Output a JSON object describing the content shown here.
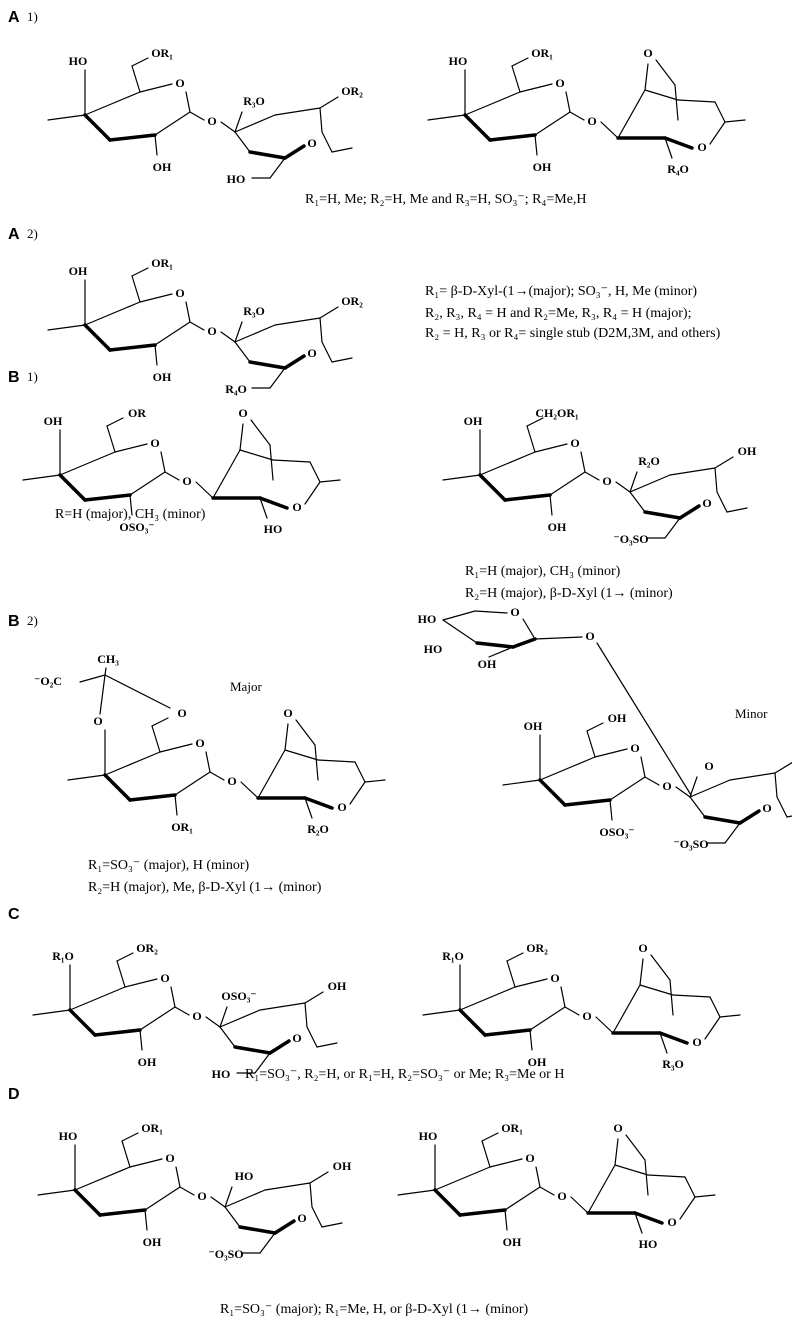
{
  "sections": [
    {
      "label": "A",
      "number": "1)",
      "structures": [
        {
          "template": "GG",
          "atoms": [
            "HO",
            "OR₁",
            "O",
            "OH",
            "O",
            "R₃O",
            "O",
            "OR₂",
            "HO"
          ]
        },
        {
          "template": "GDA",
          "atoms": [
            "HO",
            "OR₁",
            "O",
            "OH",
            "O",
            "O",
            "O",
            "R₄O"
          ]
        }
      ],
      "captions": [
        "R₁=H, Me; R₂=H, Me and R₃=H, SO₃⁻; R₄=Me,H"
      ]
    },
    {
      "label": "A",
      "number": "2)",
      "structures": [
        {
          "template": "GG",
          "atoms": [
            "OH",
            "OR₁",
            "O",
            "OH",
            "O",
            "R₃O",
            "O",
            "OR₂",
            "R₄O"
          ]
        }
      ],
      "captions": [
        "R₁= β-D-Xyl-(1→(major); SO₃⁻, H, Me (minor)",
        "R₂, R₃, R₄ = H and R₂=Me, R₃, R₄ = H (major);",
        "R₂ = H, R₃ or R₄= single stub (D2M,3M, and others)"
      ]
    },
    {
      "label": "B",
      "number": "1)",
      "structures": [
        {
          "template": "GDA",
          "atoms": [
            "OH",
            "OR",
            "O",
            "OSO₃⁻",
            "O",
            "O",
            "O",
            "HO"
          ]
        },
        {
          "template": "GG",
          "atoms": [
            "OH",
            "CH₂OR₁",
            "O",
            "OH",
            "O",
            "R₂O",
            "O",
            "OH",
            "⁻O₃SO"
          ]
        }
      ],
      "captions": [
        "R=H (major), CH₃ (minor)",
        "R₁=H (major), CH₃ (minor)",
        "R₂=H (major), β-D-Xyl (1→ (minor)"
      ]
    },
    {
      "label": "B",
      "number": "2)",
      "structures": [
        {
          "template": "GDA",
          "atoms": [
            "O",
            "O",
            "O",
            "OR₁",
            "O",
            "O",
            "O",
            "R₂O"
          ],
          "extras": [
            "CH₃",
            "⁻O₂C"
          ]
        },
        {
          "template": "GG",
          "atoms": [
            "OH",
            "OH",
            "O",
            "OSO₃⁻",
            "O",
            "O",
            "O",
            "OSO",
            "⁻O₃SO"
          ],
          "extras": [
            "HO",
            "HO",
            "OH",
            "O",
            "O"
          ]
        }
      ],
      "notes": [
        "Major",
        "Minor"
      ],
      "captions": [
        "R₁=SO₃⁻ (major), H (minor)",
        "R₂=H (major), Me, β-D-Xyl (1→  (minor)"
      ]
    },
    {
      "label": "C",
      "structures": [
        {
          "template": "GG",
          "atoms": [
            "R₁O",
            "OR₂",
            "O",
            "OH",
            "O",
            "OSO₃⁻",
            "O",
            "OH",
            "HO"
          ]
        },
        {
          "template": "GDA",
          "atoms": [
            "R₁O",
            "OR₂",
            "O",
            "OH",
            "O",
            "O",
            "O",
            "R₃O"
          ]
        }
      ],
      "captions": [
        "R₁=SO₃⁻, R₂=H, or R₁=H, R₂=SO₃⁻ or Me; R₃=Me or H"
      ]
    },
    {
      "label": "D",
      "structures": [
        {
          "template": "GG",
          "atoms": [
            "HO",
            "OR₁",
            "O",
            "OH",
            "O",
            "HO",
            "O",
            "OH",
            "⁻O₃SO"
          ]
        },
        {
          "template": "GDA",
          "atoms": [
            "HO",
            "OR₁",
            "O",
            "OH",
            "O",
            "O",
            "O",
            "HO"
          ]
        }
      ],
      "captions": [
        "R₁=SO₃⁻ (major); R₁=Me, H, or β-D-Xyl (1→ (minor)"
      ]
    }
  ]
}
